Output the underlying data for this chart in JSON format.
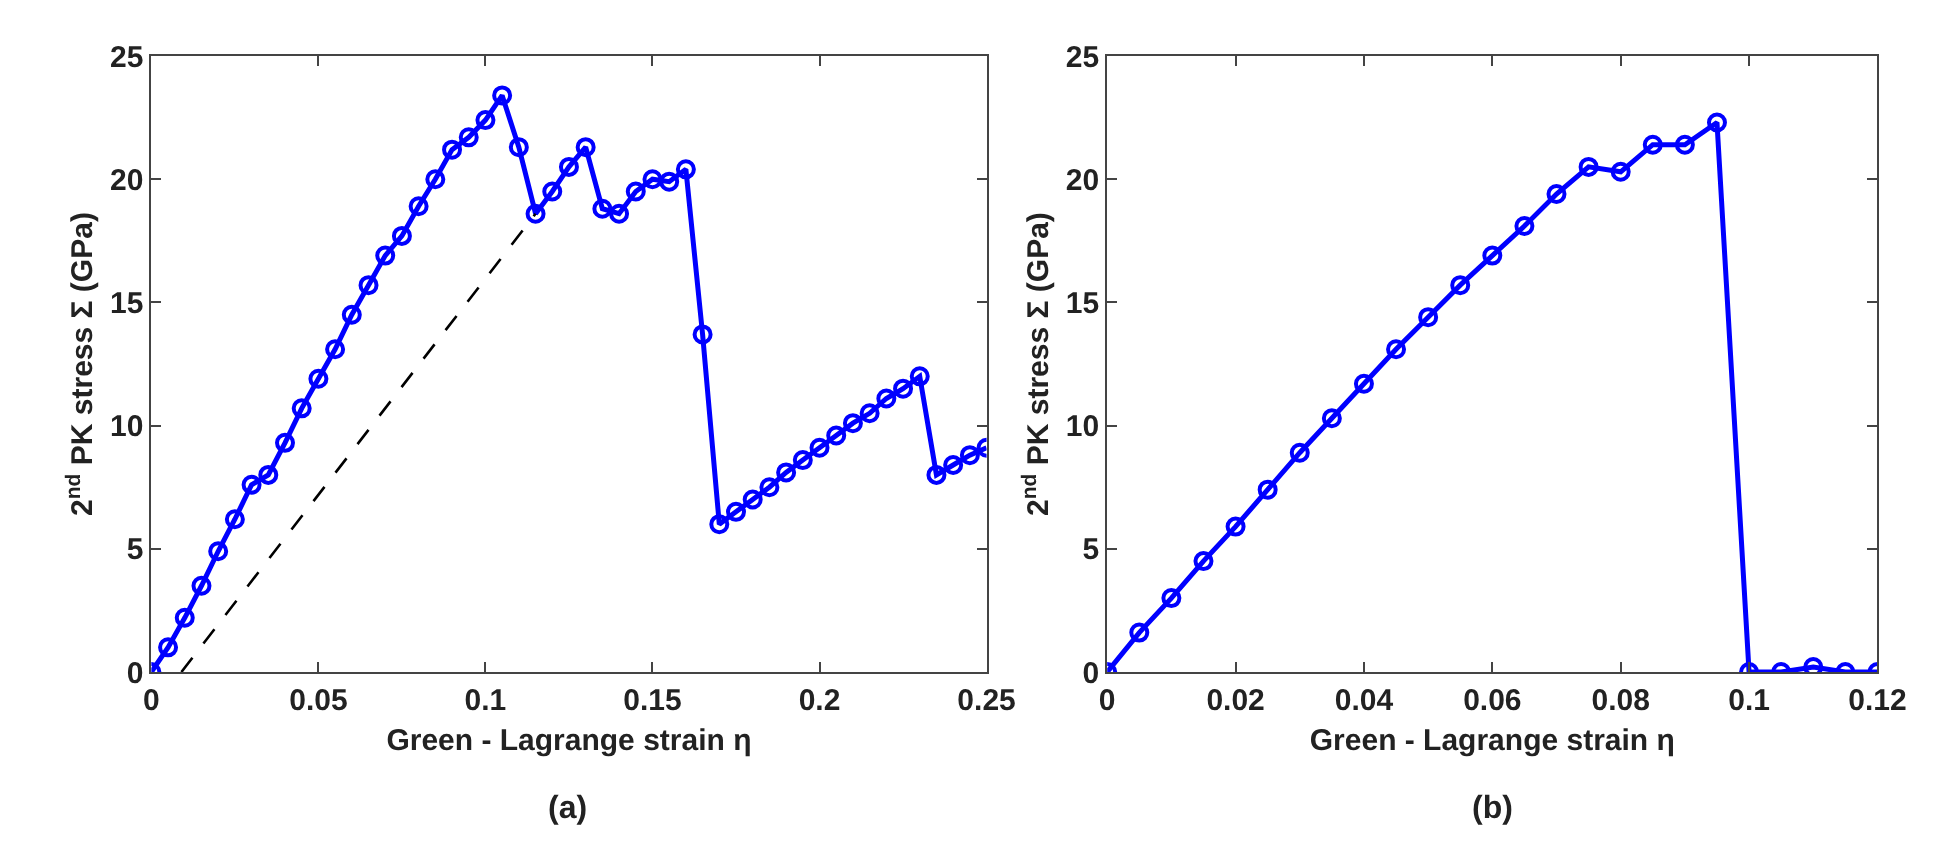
{
  "chart_data": [
    {
      "type": "line",
      "title": "(a)",
      "xlabel": "Green - Lagrange strain η",
      "ylabel": "2$^{nd}$ PK stress Σ (GPa)",
      "xlim": [
        0,
        0.25
      ],
      "xticks": [
        0,
        0.05,
        0.1,
        0.15,
        0.2,
        0.25
      ],
      "ylim": [
        0,
        25
      ],
      "yticks": [
        0,
        5,
        10,
        15,
        20,
        25
      ],
      "marker": "circle",
      "line_style": "solid",
      "series": [
        {
          "color": "#0000ff",
          "x": [
            0,
            0.005,
            0.01,
            0.015,
            0.02,
            0.025,
            0.03,
            0.035,
            0.04,
            0.045,
            0.05,
            0.055,
            0.06,
            0.065,
            0.07,
            0.075,
            0.08,
            0.085,
            0.09,
            0.095,
            0.1,
            0.105,
            0.11,
            0.115,
            0.12,
            0.125,
            0.13,
            0.135,
            0.14,
            0.145,
            0.15,
            0.155,
            0.16,
            0.165,
            0.17,
            0.175,
            0.18,
            0.185,
            0.19,
            0.195,
            0.2,
            0.205,
            0.21,
            0.215,
            0.22,
            0.225,
            0.23,
            0.235,
            0.24,
            0.245,
            0.25
          ],
          "values": [
            0,
            1.0,
            2.2,
            3.5,
            4.9,
            6.2,
            7.6,
            8.0,
            9.3,
            10.7,
            11.9,
            13.1,
            14.5,
            15.7,
            16.9,
            17.7,
            18.9,
            20.0,
            21.2,
            21.7,
            22.4,
            23.4,
            21.3,
            18.6,
            19.5,
            20.5,
            21.3,
            18.8,
            18.6,
            19.5,
            20.0,
            19.9,
            20.4,
            13.7,
            6.0,
            6.5,
            7.0,
            7.5,
            8.1,
            8.6,
            9.1,
            9.6,
            10.1,
            10.5,
            11.1,
            11.5,
            12.0,
            8.0,
            8.4,
            8.8,
            9.1
          ]
        },
        {
          "color": "#000000",
          "x": [
            0.009,
            0.115
          ],
          "values": [
            0,
            18.6
          ],
          "marker": "none",
          "line_style": "dashed"
        }
      ]
    },
    {
      "type": "line",
      "title": "(b)",
      "xlabel": "Green - Lagrange strain η",
      "ylabel": "2$^{nd}$ PK stress Σ (GPa)",
      "xlim": [
        0,
        0.12
      ],
      "xticks": [
        0,
        0.02,
        0.04,
        0.06,
        0.08,
        0.1,
        0.12
      ],
      "ylim": [
        0,
        25
      ],
      "yticks": [
        0,
        5,
        10,
        15,
        20,
        25
      ],
      "marker": "circle",
      "line_style": "solid",
      "series": [
        {
          "color": "#0000ff",
          "x": [
            0,
            0.005,
            0.01,
            0.015,
            0.02,
            0.025,
            0.03,
            0.035,
            0.04,
            0.045,
            0.05,
            0.055,
            0.06,
            0.065,
            0.07,
            0.075,
            0.08,
            0.085,
            0.09,
            0.095,
            0.1,
            0.105,
            0.11,
            0.115,
            0.12
          ],
          "values": [
            0,
            1.6,
            3.0,
            4.5,
            5.9,
            7.4,
            8.9,
            10.3,
            11.7,
            13.1,
            14.4,
            15.7,
            16.9,
            18.1,
            19.4,
            20.5,
            20.3,
            21.4,
            21.4,
            22.3,
            0,
            0,
            0.2,
            0,
            0
          ]
        }
      ]
    }
  ]
}
